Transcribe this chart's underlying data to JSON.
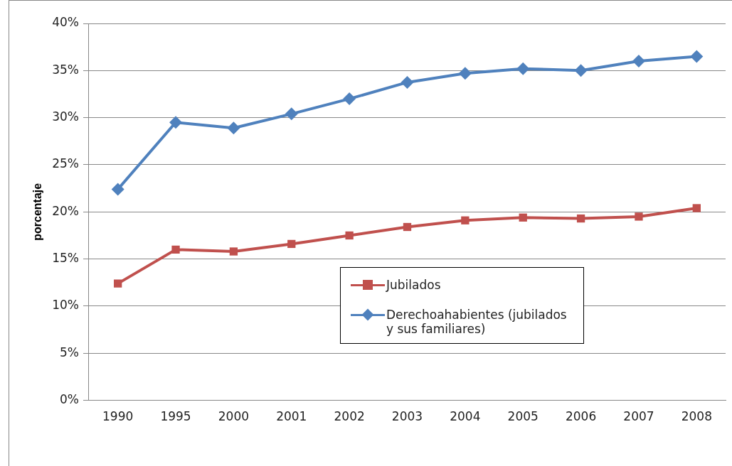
{
  "chart_data": {
    "type": "line",
    "ylabel": "porcentaje",
    "categories": [
      "1990",
      "1995",
      "2000",
      "2001",
      "2002",
      "2003",
      "2004",
      "2005",
      "2006",
      "2007",
      "2008"
    ],
    "series": [
      {
        "name": "Jubilados",
        "color": "#c0504d",
        "marker": "square",
        "values": [
          12.4,
          16.0,
          15.8,
          16.6,
          17.5,
          18.4,
          19.1,
          19.4,
          19.3,
          19.5,
          20.4
        ]
      },
      {
        "name": "Derechoahabientes (jubilados y sus familiares)",
        "color": "#4f81bd",
        "marker": "diamond",
        "values": [
          22.4,
          29.5,
          28.9,
          30.4,
          32.0,
          33.75,
          34.7,
          35.2,
          35.0,
          36.0,
          36.5
        ]
      }
    ],
    "ylim": [
      0,
      40
    ],
    "yticks": [
      {
        "value": 0,
        "label": "0%"
      },
      {
        "value": 5,
        "label": "5%"
      },
      {
        "value": 10,
        "label": "10%"
      },
      {
        "value": 15,
        "label": "15%"
      },
      {
        "value": 20,
        "label": "20%"
      },
      {
        "value": 25,
        "label": "25%"
      },
      {
        "value": 30,
        "label": "30%"
      },
      {
        "value": 35,
        "label": "35%"
      },
      {
        "value": 40,
        "label": "40%"
      }
    ],
    "grid": "y",
    "legend": "bottom",
    "line_style": "solid"
  }
}
